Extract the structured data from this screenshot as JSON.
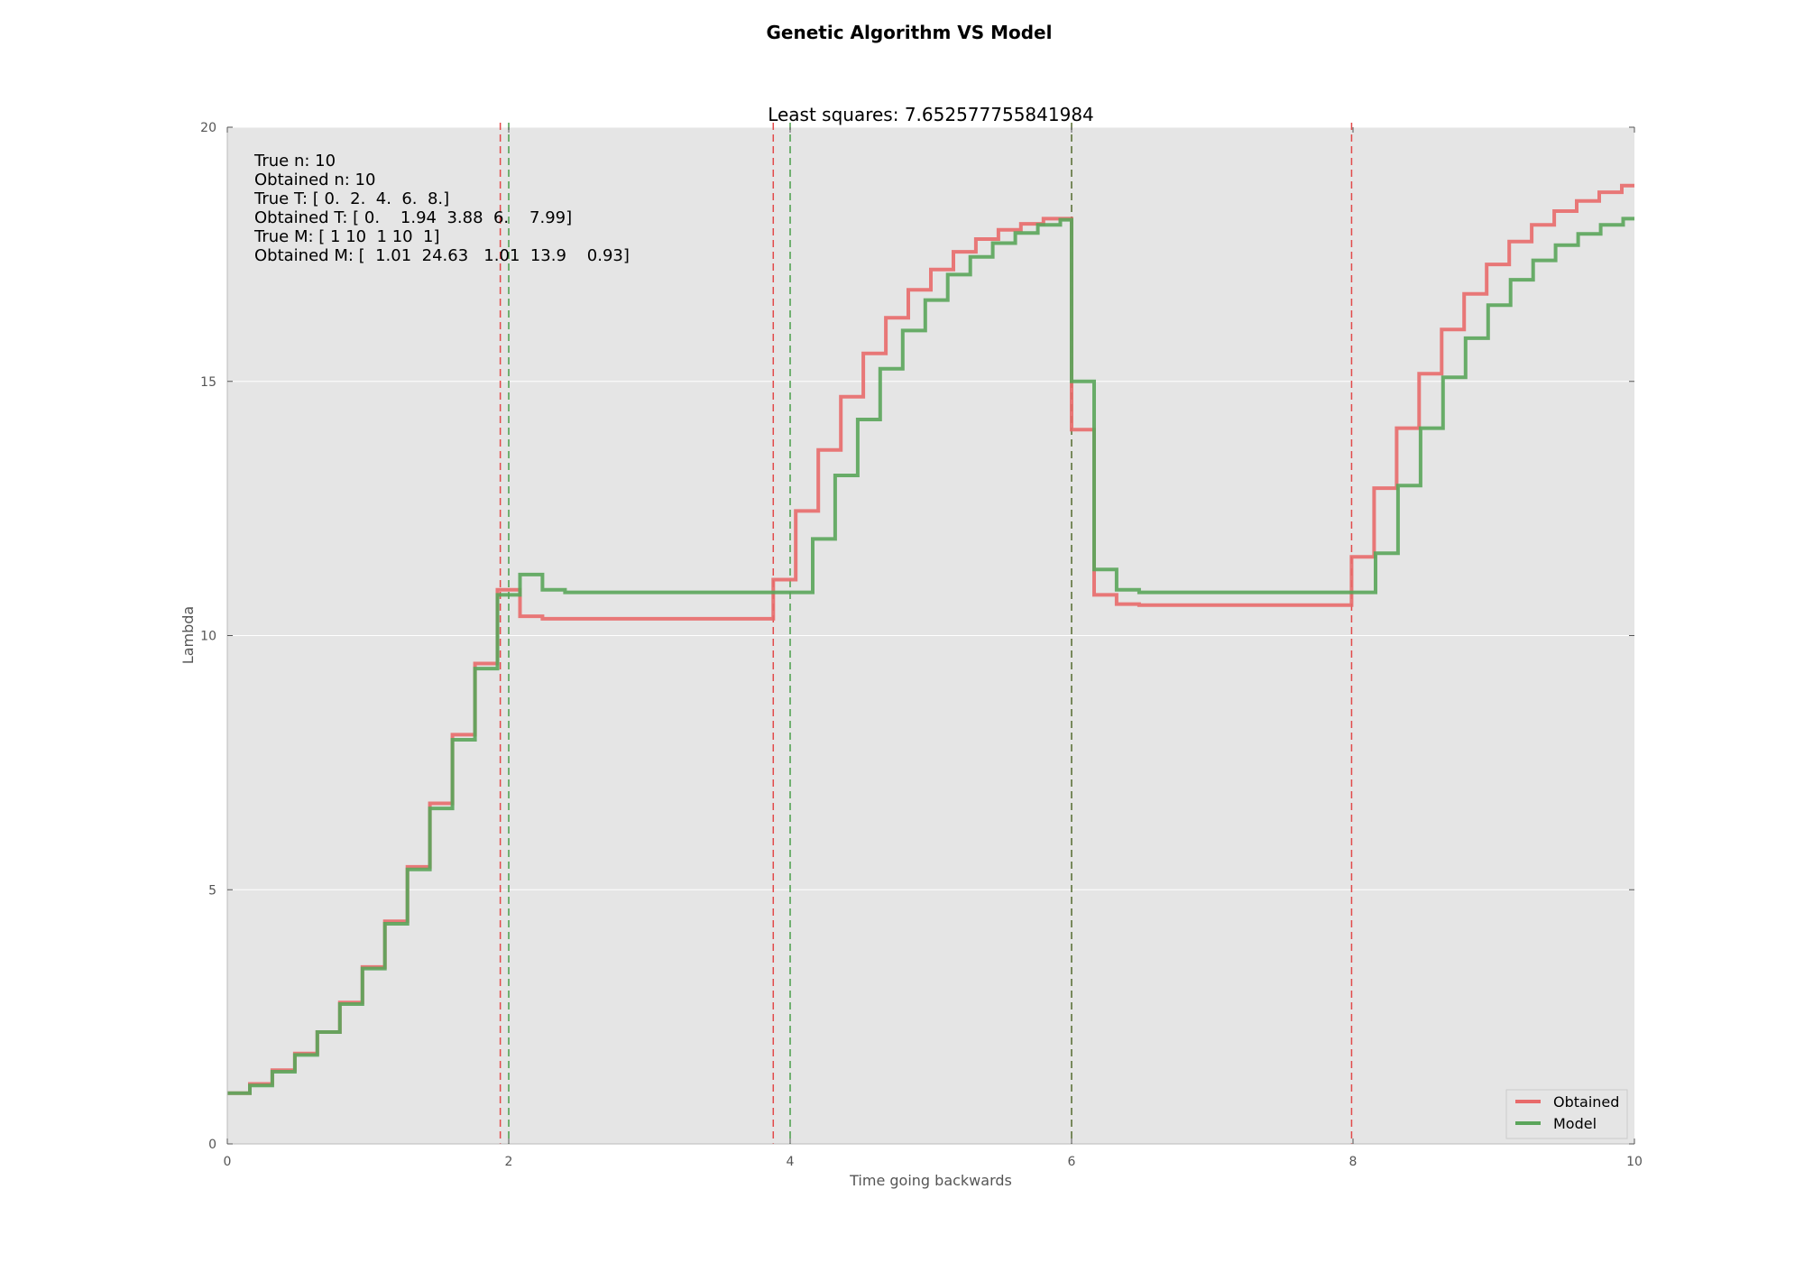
{
  "figure_title": "Genetic Algorithm VS Model",
  "chart_data": {
    "type": "line",
    "title": "Least squares: 7.652577755841984",
    "xlabel": "Time going backwards",
    "ylabel": "Lambda",
    "xlim": [
      0,
      10
    ],
    "ylim": [
      0,
      20
    ],
    "xticks": [
      "0",
      "2",
      "4",
      "6",
      "8",
      "10"
    ],
    "yticks": [
      "0",
      "5",
      "10",
      "15",
      "20"
    ],
    "grid": true,
    "legend_position": "lower-right",
    "background_color": "#e5e5e5",
    "annotations": [
      "True n: 10",
      "Obtained n: 10",
      "True T: [ 0.  2.  4.  6.  8.]",
      "Obtained T: [ 0.    1.94  3.88  6.    7.99]",
      "True M: [ 1 10  1 10  1]",
      "Obtained M: [  1.01  24.63   1.01  13.9    0.93]"
    ],
    "vlines": [
      {
        "x": 1.94,
        "color": "#e24a4a"
      },
      {
        "x": 2.0,
        "color": "#4a9e4a"
      },
      {
        "x": 3.88,
        "color": "#e24a4a"
      },
      {
        "x": 4.0,
        "color": "#4a9e4a"
      },
      {
        "x": 6.0,
        "color": "#556b2f"
      },
      {
        "x": 7.99,
        "color": "#e24a4a"
      }
    ],
    "series": [
      {
        "name": "Obtained",
        "color": "#e86a6a",
        "step_x": [
          0,
          0.16,
          0.32,
          0.48,
          0.64,
          0.8,
          0.96,
          1.12,
          1.28,
          1.44,
          1.6,
          1.76,
          1.92,
          2.08,
          2.24,
          2.4,
          3.88,
          4.04,
          4.2,
          4.36,
          4.52,
          4.68,
          4.84,
          5.0,
          5.16,
          5.32,
          5.48,
          5.64,
          5.8,
          5.96,
          6.0,
          6.16,
          6.32,
          6.48,
          7.99,
          8.15,
          8.31,
          8.47,
          8.63,
          8.79,
          8.95,
          9.11,
          9.27,
          9.43,
          9.59,
          9.75,
          9.91
        ],
        "values": [
          1.0,
          1.18,
          1.45,
          1.78,
          2.2,
          2.78,
          3.48,
          4.38,
          5.45,
          6.7,
          8.05,
          9.45,
          10.9,
          10.38,
          10.33,
          10.33,
          11.1,
          12.45,
          13.65,
          14.7,
          15.55,
          16.25,
          16.8,
          17.2,
          17.55,
          17.8,
          17.98,
          18.1,
          18.2,
          18.2,
          14.05,
          10.8,
          10.62,
          10.6,
          11.55,
          12.9,
          14.08,
          15.15,
          16.02,
          16.72,
          17.3,
          17.75,
          18.08,
          18.35,
          18.55,
          18.72,
          18.85
        ]
      },
      {
        "name": "Model",
        "color": "#5aa55a",
        "step_x": [
          0,
          0.16,
          0.32,
          0.48,
          0.64,
          0.8,
          0.96,
          1.12,
          1.28,
          1.44,
          1.6,
          1.76,
          1.92,
          2.08,
          2.24,
          2.4,
          4.0,
          4.16,
          4.32,
          4.48,
          4.64,
          4.8,
          4.96,
          5.12,
          5.28,
          5.44,
          5.6,
          5.76,
          5.92,
          6.0,
          6.16,
          6.32,
          6.48,
          8.0,
          8.16,
          8.32,
          8.48,
          8.64,
          8.8,
          8.96,
          9.12,
          9.28,
          9.44,
          9.6,
          9.76,
          9.92
        ],
        "values": [
          1.0,
          1.15,
          1.42,
          1.75,
          2.2,
          2.75,
          3.45,
          4.33,
          5.4,
          6.6,
          7.95,
          9.35,
          10.8,
          11.2,
          10.9,
          10.85,
          10.85,
          11.9,
          13.15,
          14.25,
          15.25,
          16.0,
          16.6,
          17.1,
          17.45,
          17.72,
          17.92,
          18.08,
          18.18,
          15.0,
          11.3,
          10.9,
          10.85,
          10.85,
          11.62,
          12.95,
          14.08,
          15.08,
          15.85,
          16.5,
          17.0,
          17.38,
          17.68,
          17.9,
          18.08,
          18.2
        ]
      }
    ]
  }
}
